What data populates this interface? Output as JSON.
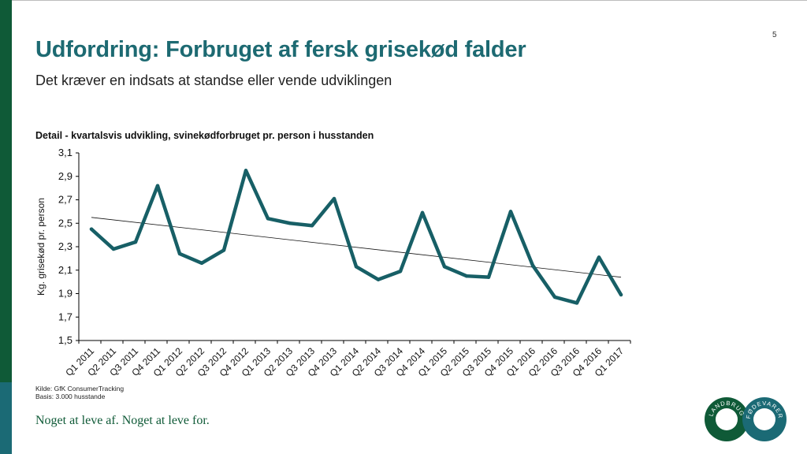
{
  "page_number": "5",
  "title": "Udfordring: Forbruget af fersk grisekød falder",
  "subtitle": "Det kræver en indsats at standse eller vende udviklingen",
  "chart_title": "Detail - kvartalsvis udvikling, svinekødforbruget pr. person i husstanden",
  "source": {
    "line1": "Kilde: GfK ConsumerTracking",
    "line2": "Basis: 3.000 husstande"
  },
  "tagline": "Noget at leve af. Noget at leve for.",
  "logo": {
    "left_text": "LANDBRUG",
    "right_text": "FØDEVARER"
  },
  "colors": {
    "title": "#1d6a72",
    "line": "#175f66",
    "brand_green": "#0f5a37",
    "brand_teal": "#1b6a75"
  },
  "chart_data": {
    "type": "line",
    "title": "Detail - kvartalsvis udvikling, svinekødforbruget pr. person i husstanden",
    "xlabel": "",
    "ylabel": "Kg. grisekød pr. person",
    "ylim": [
      1.5,
      3.1
    ],
    "yticks": [
      "1,5",
      "1,7",
      "1,9",
      "2,1",
      "2,3",
      "2,5",
      "2,7",
      "2,9",
      "3,1"
    ],
    "categories": [
      "Q1 2011",
      "Q2 2011",
      "Q3 2011",
      "Q4 2011",
      "Q1 2012",
      "Q2 2012",
      "Q3 2012",
      "Q4 2012",
      "Q1 2013",
      "Q2 2013",
      "Q3 2013",
      "Q4 2013",
      "Q1 2014",
      "Q2 2014",
      "Q3 2014",
      "Q4 2014",
      "Q1 2015",
      "Q2 2015",
      "Q3 2015",
      "Q4 2015",
      "Q1 2016",
      "Q2 2016",
      "Q3 2016",
      "Q4 2016",
      "Q1 2017"
    ],
    "series": [
      {
        "values": [
          2.45,
          2.28,
          2.34,
          2.82,
          2.24,
          2.16,
          2.27,
          2.95,
          2.54,
          2.5,
          2.48,
          2.71,
          2.13,
          2.02,
          2.09,
          2.59,
          2.13,
          2.05,
          2.04,
          2.6,
          2.14,
          1.87,
          1.82,
          2.21,
          1.89
        ]
      }
    ],
    "trendline": {
      "start": 2.55,
      "end": 2.04
    },
    "grid": false,
    "legend": "none"
  }
}
